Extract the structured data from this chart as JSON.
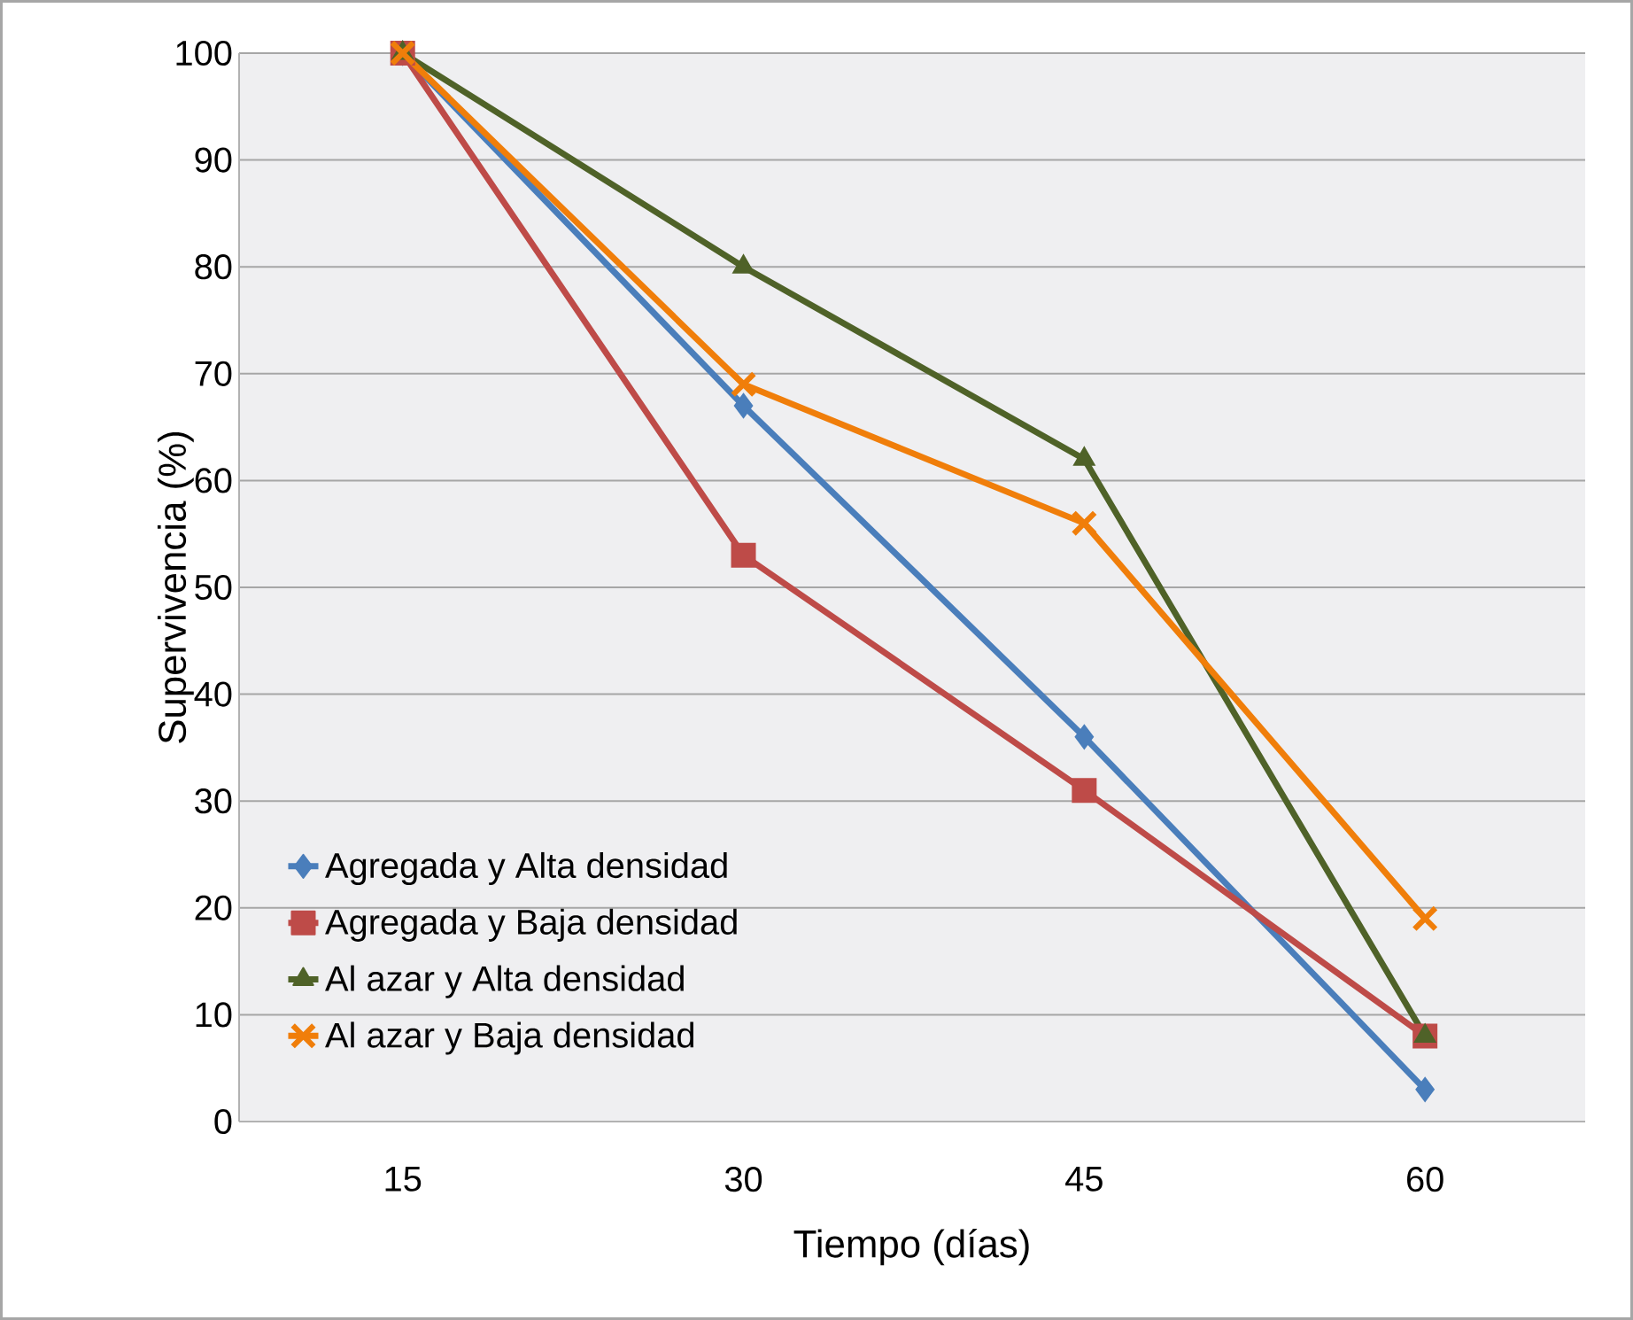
{
  "chart_data": {
    "type": "line",
    "xlabel": "Tiempo (días)",
    "ylabel": "Supervivencia (%)",
    "categories": [
      "15",
      "30",
      "45",
      "60"
    ],
    "series": [
      {
        "name": "Agregada y Alta densidad",
        "color": "#4a7ebb",
        "marker": "diamond",
        "values": [
          100,
          67,
          36,
          3
        ]
      },
      {
        "name": "Agregada y Baja densidad",
        "color": "#be4b48",
        "marker": "square",
        "values": [
          100,
          53,
          31,
          8
        ]
      },
      {
        "name": "Al azar y Alta densidad",
        "color": "#4f6228",
        "marker": "triangle",
        "values": [
          100,
          80,
          62,
          8
        ]
      },
      {
        "name": "Al azar y Baja densidad",
        "color": "#f07e0a",
        "marker": "cross",
        "values": [
          100,
          69,
          56,
          19
        ]
      }
    ],
    "ylim": [
      0,
      100
    ],
    "yticks": [
      0,
      10,
      20,
      30,
      40,
      50,
      60,
      70,
      80,
      90,
      100
    ],
    "grid": "y",
    "legend": "bottom left",
    "line_style": "solid"
  }
}
